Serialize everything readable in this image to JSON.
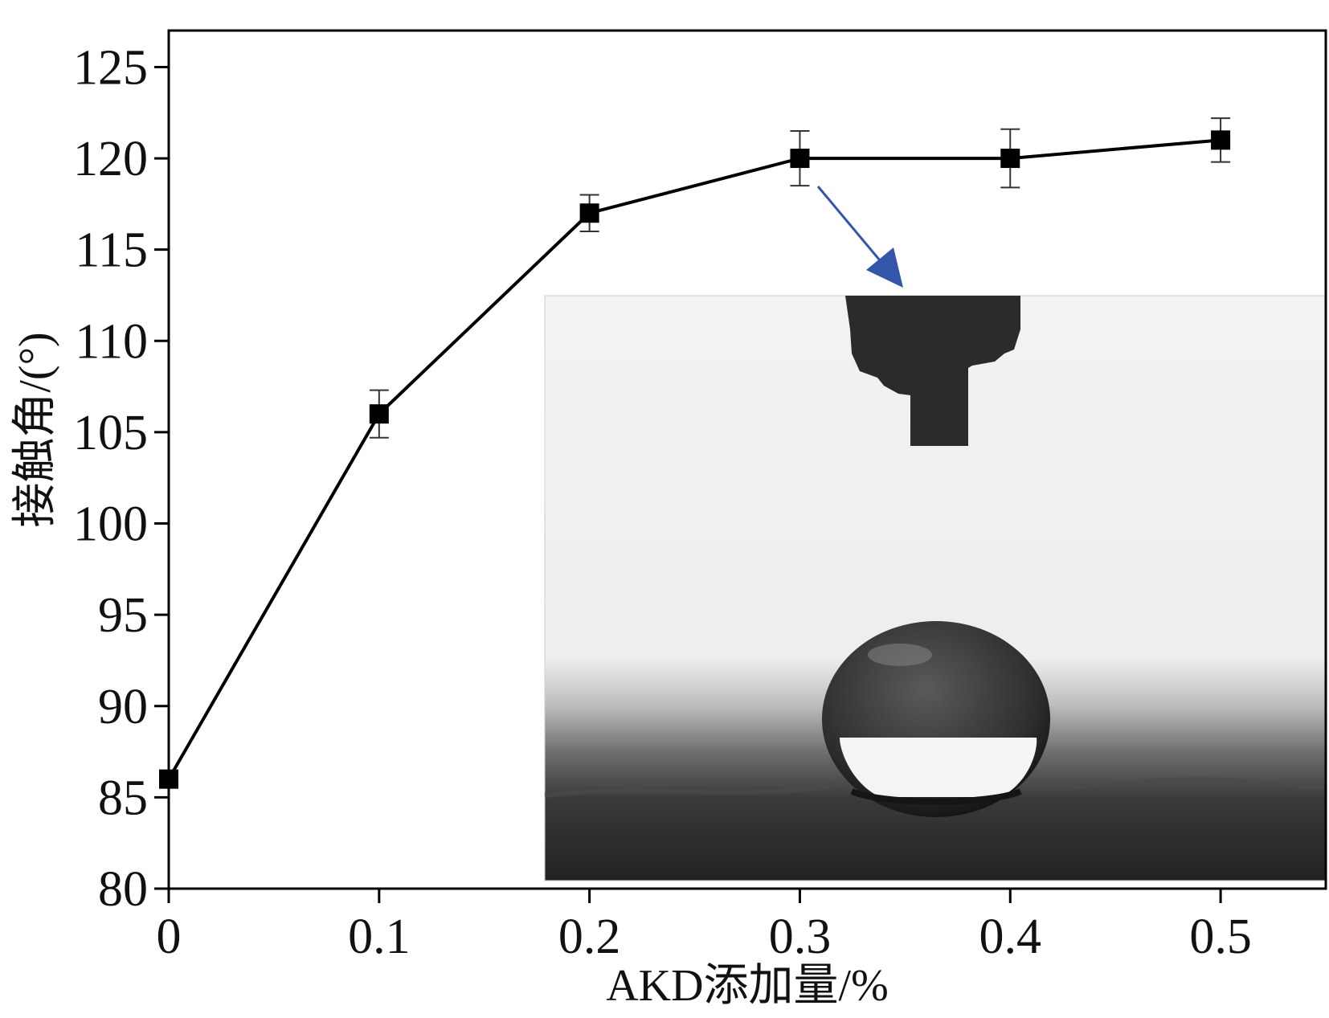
{
  "chart_data": {
    "type": "line",
    "title": "",
    "xlabel": "AKD添加量/%",
    "ylabel": "接触角/(°)",
    "xlim": [
      0,
      0.55
    ],
    "ylim": [
      80,
      127
    ],
    "x_ticks": [
      "0",
      "0.1",
      "0.2",
      "0.3",
      "0.4",
      "0.5"
    ],
    "y_ticks": [
      "80",
      "85",
      "90",
      "95",
      "100",
      "105",
      "110",
      "115",
      "120",
      "125"
    ],
    "series": [
      {
        "marker": "square",
        "color": "#000000",
        "x": [
          0,
          0.1,
          0.2,
          0.3,
          0.4,
          0.5
        ],
        "y": [
          86,
          106,
          117,
          120,
          120,
          121
        ],
        "error": [
          null,
          1.3,
          1.0,
          1.5,
          1.6,
          1.2
        ]
      }
    ],
    "inset": {
      "type": "photo",
      "subject": "water-droplet-contact-angle",
      "annotates_x": 0.3,
      "arrow_color": "#3355aa"
    },
    "grid": false,
    "legend": "none"
  }
}
